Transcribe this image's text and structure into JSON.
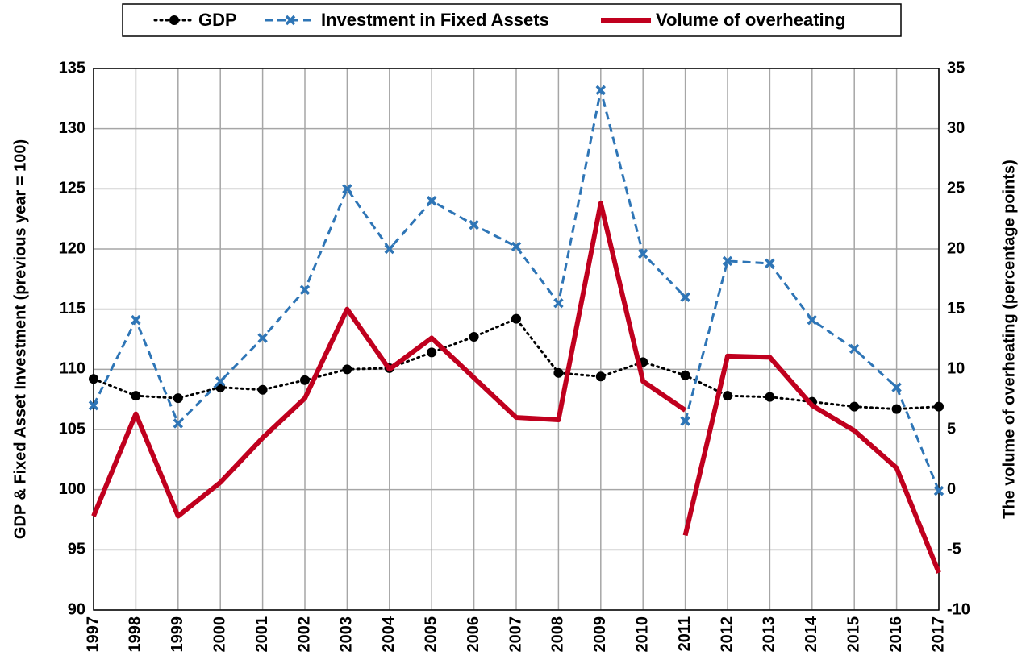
{
  "chart_data": {
    "type": "line",
    "y_label": "GDP & Fixed Asset Investment (previous year = 100)",
    "y2_label": "The volume of overheating (percentage points)",
    "x": [
      1997,
      1998,
      1999,
      2000,
      2001,
      2002,
      2003,
      2004,
      2005,
      2006,
      2007,
      2008,
      2009,
      2010,
      2011,
      2012,
      2013,
      2014,
      2015,
      2016,
      2017
    ],
    "xlim": [
      1997,
      2017
    ],
    "xticks": [
      1997,
      1998,
      1999,
      2000,
      2001,
      2002,
      2003,
      2004,
      2005,
      2006,
      2007,
      2008,
      2009,
      2010,
      2011,
      2012,
      2013,
      2014,
      2015,
      2016,
      2017
    ],
    "ylim": [
      90,
      135
    ],
    "yticks": [
      90,
      95,
      100,
      105,
      110,
      115,
      120,
      125,
      130,
      135
    ],
    "y2lim": [
      -10,
      35
    ],
    "y2ticks": [
      -10,
      -5,
      0,
      5,
      10,
      15,
      20,
      25,
      30,
      35
    ],
    "grid": true,
    "legend": "top",
    "series": [
      {
        "name": "GDP",
        "color": "#000000",
        "style": "dotted",
        "marker": "circle",
        "values": [
          109.2,
          107.8,
          107.6,
          108.5,
          108.3,
          109.1,
          110.0,
          110.1,
          111.4,
          112.7,
          114.2,
          109.7,
          109.4,
          110.6,
          109.5,
          107.8,
          107.7,
          107.3,
          106.9,
          106.7,
          106.9
        ]
      },
      {
        "name": "Investment in Fixed Assets",
        "color": "#2e75b6",
        "style": "dashed",
        "marker": "x",
        "x": [
          1997,
          1998,
          1999,
          2000,
          2001,
          2002,
          2003,
          2004,
          2005,
          2006,
          2007,
          2008,
          2009,
          2010,
          2011,
          null,
          2011,
          2012,
          2013,
          2014,
          2015,
          2016,
          2017
        ],
        "values": [
          107.0,
          114.1,
          105.5,
          109.0,
          112.6,
          116.6,
          125.0,
          120.0,
          124.0,
          122.0,
          120.2,
          115.5,
          133.2,
          119.6,
          116.0,
          null,
          105.7,
          119.0,
          118.8,
          114.1,
          111.7,
          108.5,
          99.9
        ]
      },
      {
        "name": "Volume of overheating",
        "color": "#c0001e",
        "style": "solid",
        "axis": "y2",
        "x": [
          1997,
          1998,
          1999,
          2000,
          2001,
          2002,
          2003,
          2004,
          2005,
          2006,
          2007,
          2008,
          2009,
          2010,
          2011,
          null,
          2011,
          2012,
          2013,
          2014,
          2015,
          2016,
          2017
        ],
        "values": [
          -2.2,
          6.3,
          -2.2,
          0.6,
          4.3,
          7.6,
          15.0,
          10.0,
          12.6,
          9.3,
          6.0,
          5.8,
          23.8,
          9.0,
          6.6,
          null,
          -3.8,
          11.1,
          11.0,
          7.0,
          4.9,
          1.8,
          -6.9
        ]
      }
    ]
  }
}
